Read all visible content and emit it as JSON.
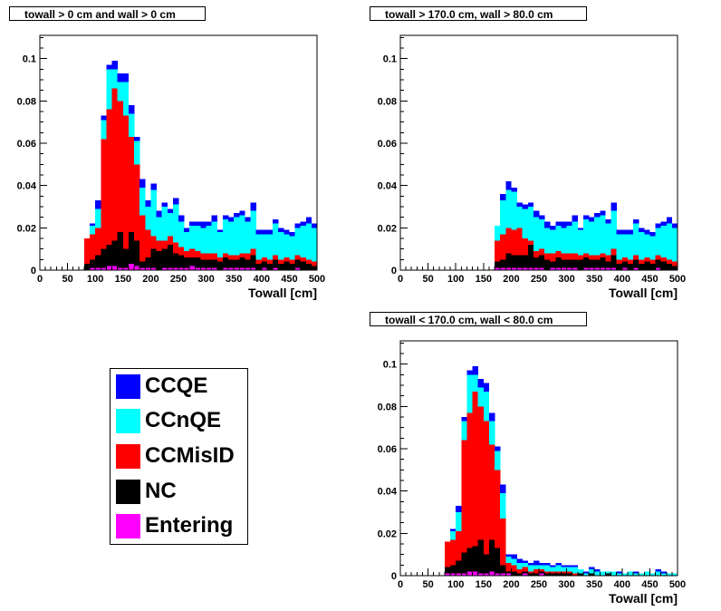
{
  "colors": {
    "CCQE": "#0000ff",
    "CCnQE": "#00ffff",
    "CCMisID": "#ff0000",
    "NC": "#000000",
    "Entering": "#ff00ff"
  },
  "legend": {
    "items": [
      {
        "label": "CCQE",
        "color": "#0000ff"
      },
      {
        "label": "CCnQE",
        "color": "#00ffff"
      },
      {
        "label": "CCMisID",
        "color": "#ff0000"
      },
      {
        "label": "NC",
        "color": "#000000"
      },
      {
        "label": "Entering",
        "color": "#ff00ff"
      }
    ]
  },
  "chart_data": [
    {
      "type": "bar",
      "stacked": true,
      "title": "towall > 0 cm and wall > 0 cm",
      "xlabel": "Towall [cm]",
      "ylabel": "",
      "xlim": [
        0,
        500
      ],
      "ylim": [
        0,
        0.111
      ],
      "xticks": [
        "0",
        "50",
        "100",
        "150",
        "200",
        "250",
        "300",
        "350",
        "400",
        "450",
        "500"
      ],
      "yticks": [
        "0",
        "0.02",
        "0.04",
        "0.06",
        "0.08",
        "0.1"
      ],
      "bin_edges_start": 0,
      "bin_width": 10,
      "series": [
        {
          "name": "Entering",
          "values": [
            0,
            0,
            0,
            0,
            0,
            0,
            0,
            0,
            0,
            0.001,
            0.001,
            0.001,
            0.002,
            0.002,
            0.001,
            0.001,
            0.003,
            0.002,
            0.001,
            0.001,
            0.001,
            0,
            0.001,
            0.001,
            0.001,
            0.001,
            0.001,
            0.002,
            0.001,
            0.001,
            0.001,
            0.001,
            0,
            0.001,
            0.001,
            0.001,
            0.001,
            0.001,
            0.001,
            0,
            0.001,
            0,
            0.001,
            0,
            0,
            0,
            0.001,
            0,
            0,
            0
          ]
        },
        {
          "name": "NC",
          "values": [
            0,
            0,
            0,
            0,
            0,
            0,
            0,
            0,
            0.003,
            0.004,
            0.006,
            0.009,
            0.01,
            0.012,
            0.017,
            0.009,
            0.015,
            0.012,
            0.003,
            0.005,
            0.009,
            0.009,
            0.009,
            0.011,
            0.007,
            0.006,
            0.005,
            0.004,
            0.005,
            0.004,
            0.004,
            0.004,
            0.004,
            0.005,
            0.004,
            0.004,
            0.005,
            0.004,
            0.006,
            0.003,
            0.003,
            0.003,
            0.004,
            0.003,
            0.004,
            0.003,
            0.004,
            0.004,
            0.003,
            0.002
          ]
        },
        {
          "name": "CCMisID",
          "values": [
            0,
            0,
            0,
            0,
            0,
            0,
            0,
            0,
            0.012,
            0.012,
            0.013,
            0.052,
            0.064,
            0.072,
            0.062,
            0.063,
            0.045,
            0.036,
            0.022,
            0.013,
            0.006,
            0.005,
            0.004,
            0.004,
            0.005,
            0.004,
            0.003,
            0.004,
            0.003,
            0.003,
            0.003,
            0.003,
            0.002,
            0.002,
            0.002,
            0.002,
            0.002,
            0.003,
            0.003,
            0.002,
            0.002,
            0.002,
            0.002,
            0.002,
            0.002,
            0.002,
            0.002,
            0.002,
            0.002,
            0.002
          ]
        },
        {
          "name": "CCnQE",
          "values": [
            0,
            0,
            0,
            0,
            0,
            0,
            0,
            0,
            0,
            0.004,
            0.009,
            0.009,
            0.019,
            0.009,
            0.009,
            0.016,
            0.011,
            0.011,
            0.013,
            0.011,
            0.022,
            0.011,
            0.016,
            0.011,
            0.018,
            0.012,
            0.009,
            0.011,
            0.012,
            0.012,
            0.013,
            0.015,
            0.012,
            0.016,
            0.016,
            0.018,
            0.018,
            0.015,
            0.018,
            0.012,
            0.011,
            0.012,
            0.015,
            0.013,
            0.011,
            0.011,
            0.013,
            0.015,
            0.017,
            0.016
          ]
        },
        {
          "name": "CCQE",
          "values": [
            0,
            0,
            0,
            0,
            0,
            0,
            0,
            0,
            0,
            0.001,
            0.004,
            0.002,
            0.002,
            0.004,
            0.004,
            0.004,
            0.004,
            0.002,
            0.004,
            0.003,
            0.003,
            0.003,
            0.002,
            0.002,
            0.003,
            0.003,
            0.002,
            0.002,
            0.002,
            0.003,
            0.002,
            0.003,
            0.001,
            0.002,
            0.002,
            0.002,
            0.002,
            0.002,
            0.004,
            0.002,
            0.002,
            0.002,
            0.002,
            0.002,
            0.002,
            0.002,
            0.002,
            0.002,
            0.003,
            0.002
          ]
        }
      ]
    },
    {
      "type": "bar",
      "stacked": true,
      "title": "towall > 170.0 cm, wall > 80.0 cm",
      "xlabel": "Towall [cm]",
      "ylabel": "",
      "xlim": [
        0,
        500
      ],
      "ylim": [
        0,
        0.111
      ],
      "xticks": [
        "0",
        "50",
        "100",
        "150",
        "200",
        "250",
        "300",
        "350",
        "400",
        "450",
        "500"
      ],
      "yticks": [
        "0",
        "0.02",
        "0.04",
        "0.06",
        "0.08",
        "0.1"
      ],
      "bin_edges_start": 0,
      "bin_width": 10,
      "series": [
        {
          "name": "Entering",
          "values": [
            0,
            0,
            0,
            0,
            0,
            0,
            0,
            0,
            0,
            0,
            0,
            0,
            0,
            0,
            0,
            0,
            0,
            0.001,
            0.001,
            0.001,
            0.001,
            0.001,
            0.001,
            0.001,
            0.001,
            0.001,
            0,
            0.001,
            0.001,
            0.001,
            0.001,
            0.001,
            0,
            0.001,
            0.001,
            0.001,
            0.001,
            0.001,
            0.001,
            0,
            0.001,
            0,
            0.001,
            0,
            0,
            0,
            0.001,
            0,
            0,
            0
          ]
        },
        {
          "name": "NC",
          "values": [
            0,
            0,
            0,
            0,
            0,
            0,
            0,
            0,
            0,
            0,
            0,
            0,
            0,
            0,
            0,
            0,
            0,
            0.003,
            0.004,
            0.007,
            0.006,
            0.006,
            0.006,
            0.011,
            0.005,
            0.006,
            0.005,
            0.003,
            0.005,
            0.004,
            0.004,
            0.004,
            0.005,
            0.005,
            0.004,
            0.004,
            0.005,
            0.003,
            0.006,
            0.003,
            0.003,
            0.003,
            0.004,
            0.003,
            0.004,
            0.003,
            0.004,
            0.004,
            0.003,
            0.002
          ]
        },
        {
          "name": "CCMisID",
          "values": [
            0,
            0,
            0,
            0,
            0,
            0,
            0,
            0,
            0,
            0,
            0,
            0,
            0,
            0,
            0,
            0,
            0,
            0.01,
            0.012,
            0.012,
            0.012,
            0.013,
            0.008,
            0.002,
            0.003,
            0.003,
            0.003,
            0.004,
            0.003,
            0.003,
            0.003,
            0.003,
            0.002,
            0.002,
            0.002,
            0.002,
            0.002,
            0.003,
            0.003,
            0.002,
            0.002,
            0.002,
            0.002,
            0.002,
            0.002,
            0.002,
            0.002,
            0.002,
            0.002,
            0.002
          ]
        },
        {
          "name": "CCnQE",
          "values": [
            0,
            0,
            0,
            0,
            0,
            0,
            0,
            0,
            0,
            0,
            0,
            0,
            0,
            0,
            0,
            0,
            0,
            0.007,
            0.016,
            0.018,
            0.018,
            0.01,
            0.014,
            0.016,
            0.016,
            0.014,
            0.012,
            0.011,
            0.012,
            0.012,
            0.013,
            0.015,
            0.012,
            0.016,
            0.016,
            0.018,
            0.018,
            0.015,
            0.018,
            0.012,
            0.011,
            0.012,
            0.015,
            0.013,
            0.011,
            0.011,
            0.013,
            0.015,
            0.017,
            0.016
          ]
        },
        {
          "name": "CCQE",
          "values": [
            0,
            0,
            0,
            0,
            0,
            0,
            0,
            0,
            0,
            0,
            0,
            0,
            0,
            0,
            0,
            0,
            0,
            0,
            0.003,
            0.004,
            0.002,
            0.002,
            0.002,
            0.002,
            0.003,
            0.002,
            0.003,
            0.002,
            0.002,
            0.003,
            0.002,
            0.003,
            0.001,
            0.002,
            0.002,
            0.002,
            0.002,
            0.002,
            0.004,
            0.002,
            0.002,
            0.002,
            0.002,
            0.002,
            0.002,
            0.002,
            0.002,
            0.002,
            0.003,
            0.002
          ]
        }
      ]
    },
    {
      "type": "bar",
      "stacked": true,
      "title": "towall < 170.0 cm, wall < 80.0 cm",
      "xlabel": "Towall [cm]",
      "ylabel": "",
      "xlim": [
        0,
        500
      ],
      "ylim": [
        0,
        0.111
      ],
      "xticks": [
        "0",
        "50",
        "100",
        "150",
        "200",
        "250",
        "300",
        "350",
        "400",
        "450",
        "500"
      ],
      "yticks": [
        "0",
        "0.02",
        "0.04",
        "0.06",
        "0.08",
        "0.1"
      ],
      "bin_edges_start": 0,
      "bin_width": 10,
      "series": [
        {
          "name": "Entering",
          "values": [
            0,
            0,
            0,
            0,
            0,
            0,
            0,
            0,
            0.001,
            0.001,
            0.001,
            0.001,
            0.002,
            0.002,
            0.001,
            0.001,
            0.002,
            0.001,
            0.001,
            0.001,
            0,
            0,
            0.001,
            0,
            0,
            0.001,
            0,
            0,
            0,
            0,
            0,
            0,
            0,
            0,
            0,
            0,
            0,
            0,
            0,
            0,
            0,
            0,
            0,
            0,
            0,
            0,
            0,
            0,
            0,
            0
          ]
        },
        {
          "name": "NC",
          "values": [
            0,
            0,
            0,
            0,
            0,
            0,
            0,
            0,
            0.003,
            0.004,
            0.006,
            0.01,
            0.011,
            0.012,
            0.016,
            0.009,
            0.015,
            0.012,
            0.004,
            0.001,
            0.002,
            0.001,
            0.001,
            0.001,
            0.001,
            0.001,
            0.001,
            0.001,
            0.001,
            0.001,
            0.001,
            0,
            0.001,
            0,
            0.001,
            0,
            0,
            0.001,
            0,
            0,
            0,
            0,
            0,
            0,
            0,
            0,
            0,
            0,
            0,
            0
          ]
        },
        {
          "name": "CCMisID",
          "values": [
            0,
            0,
            0,
            0,
            0,
            0,
            0,
            0,
            0.012,
            0.012,
            0.014,
            0.053,
            0.064,
            0.073,
            0.063,
            0.063,
            0.045,
            0.037,
            0.022,
            0.004,
            0.003,
            0.002,
            0.002,
            0.001,
            0.002,
            0.001,
            0.001,
            0.001,
            0.001,
            0.001,
            0.001,
            0.001,
            0,
            0,
            0,
            0,
            0,
            0,
            0,
            0,
            0,
            0,
            0,
            0,
            0,
            0,
            0,
            0,
            0,
            0
          ]
        },
        {
          "name": "CCnQE",
          "values": [
            0,
            0,
            0,
            0,
            0,
            0,
            0,
            0,
            0,
            0.004,
            0.009,
            0.009,
            0.018,
            0.008,
            0.009,
            0.014,
            0.011,
            0.009,
            0.012,
            0.003,
            0.003,
            0.003,
            0.002,
            0.003,
            0.002,
            0.002,
            0.003,
            0.002,
            0.003,
            0.002,
            0.002,
            0.003,
            0.002,
            0.001,
            0.002,
            0.002,
            0.002,
            0.001,
            0.002,
            0.001,
            0.001,
            0.002,
            0.001,
            0.001,
            0.002,
            0.001,
            0.002,
            0.001,
            0.001,
            0.001
          ]
        },
        {
          "name": "CCQE",
          "values": [
            0,
            0,
            0,
            0,
            0,
            0,
            0,
            0,
            0,
            0.001,
            0.003,
            0.002,
            0.002,
            0.004,
            0.004,
            0.004,
            0.004,
            0.002,
            0.004,
            0.001,
            0.002,
            0.002,
            0.001,
            0.001,
            0.002,
            0.001,
            0.001,
            0.001,
            0.001,
            0.001,
            0.001,
            0.001,
            0,
            0.001,
            0.001,
            0.001,
            0,
            0,
            0,
            0.001,
            0,
            0,
            0.001,
            0,
            0,
            0,
            0.001,
            0.001,
            0,
            0
          ]
        }
      ]
    }
  ]
}
